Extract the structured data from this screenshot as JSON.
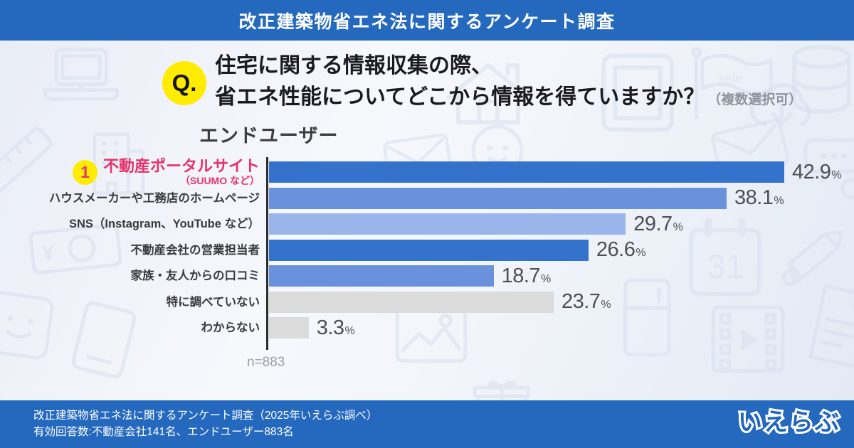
{
  "banner": {
    "title": "改正建築物省エネ法に関するアンケート調査"
  },
  "question": {
    "badge": "Q.",
    "line1": "住宅に関する情報収集の際、",
    "line2": "省エネ性能についてどこから情報を得ていますか？",
    "note": "（複数選択可）"
  },
  "chart_data": {
    "type": "bar",
    "orientation": "horizontal",
    "title": "エンドユーザー",
    "unit": "%",
    "n_label": "n=883",
    "xlim": [
      0,
      48
    ],
    "grid": false,
    "categories": [
      "不動産ポータルサイト（SUUMO など）",
      "ハウスメーカーや工務店のホームページ",
      "SNS（Instagram、YouTube など）",
      "不動産会社の営業担当者",
      "家族・友人からの口コミ",
      "特に調べていない",
      "わからない"
    ],
    "values": [
      42.9,
      38.1,
      29.7,
      26.6,
      18.7,
      23.7,
      3.3
    ],
    "rows": [
      {
        "rank_badge": "1",
        "label": "不動産ポータルサイト",
        "sublabel": "（SUUMO など）",
        "value": 42.9,
        "bar_color": "#3572CB",
        "label_color": "#E7336B",
        "highlight": true
      },
      {
        "label": "ハウスメーカーや工務店のホームページ",
        "value": 38.1,
        "bar_color": "#6A92DC"
      },
      {
        "label": "SNS（Instagram、YouTube など）",
        "value": 29.7,
        "bar_color": "#9AB5EA"
      },
      {
        "label": "不動産会社の営業担当者",
        "value": 26.6,
        "bar_color": "#3572CB"
      },
      {
        "label": "家族・友人からの口コミ",
        "value": 18.7,
        "bar_color": "#6A92DC"
      },
      {
        "label": "特に調べていない",
        "value": 23.7,
        "bar_color": "#DBDBDB"
      },
      {
        "label": "わからない",
        "value": 3.3,
        "bar_color": "#DBDBDB"
      }
    ]
  },
  "footer": {
    "line1": "改正建築物省エネ法に関するアンケート調査（2025年いえらぶ調べ）",
    "line2": "有効回答数:不動産会社141名、エンドユーザー883名",
    "logo": "いえらぶ"
  },
  "colors": {
    "banner_bg": "#2569BE",
    "footer_bg": "#2569BE",
    "accent_yellow": "#FFEC00",
    "accent_pink": "#E7336B",
    "bar_dark": "#3572CB",
    "bar_medium": "#6A92DC",
    "bar_light": "#9AB5EA",
    "bar_gray": "#DBDBDB",
    "background_icon": "#D8DFEE"
  }
}
